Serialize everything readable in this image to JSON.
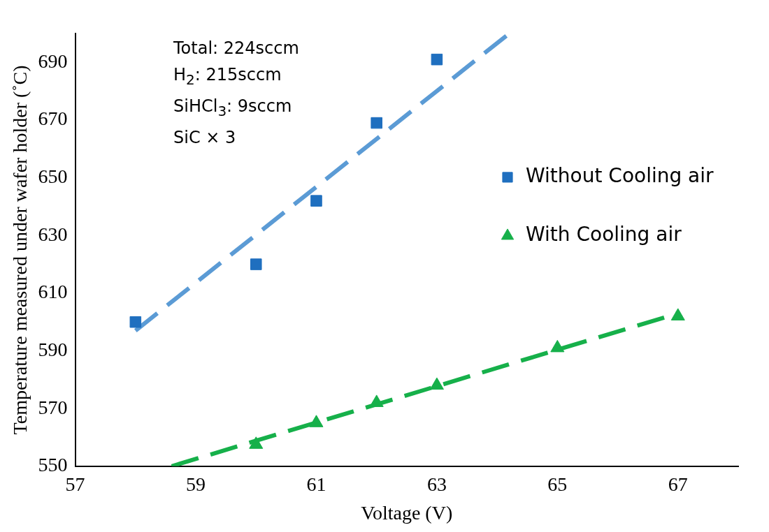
{
  "chart_data": {
    "type": "scatter",
    "xlabel": "Voltage (V)",
    "ylabel": "Temperature measured under wafer holder (˚C)",
    "xlim": [
      57,
      68
    ],
    "xticks": [
      57,
      59,
      61,
      63,
      65,
      67
    ],
    "ylim": [
      550,
      700
    ],
    "yticks": [
      550,
      570,
      590,
      610,
      630,
      650,
      670,
      690
    ],
    "grid": false,
    "legend": "right",
    "line_style": "dashed",
    "annotations": [
      "Total: 224sccm",
      "H$_{2}$: 215sccm",
      "SiHCl$_{3}$: 9sccm",
      "SiC × 3"
    ],
    "series": [
      {
        "name": "Without Cooling air",
        "marker": "square",
        "color": "#1f6fbf",
        "x": [
          58,
          60,
          61,
          62,
          63
        ],
        "values": [
          600,
          620,
          642,
          669,
          691
        ]
      },
      {
        "name": "With Cooling air",
        "marker": "triangle",
        "color": "#16b04a",
        "x": [
          60,
          61,
          62,
          63,
          65,
          67
        ],
        "values": [
          557.5,
          565,
          572,
          578,
          591,
          602
        ]
      },
      {
        "type": "line",
        "color": "#5b9bd5",
        "x": [
          58,
          64.2
        ],
        "values": [
          597,
          700
        ]
      },
      {
        "type": "line",
        "color": "#16b04a",
        "x": [
          58.6,
          67
        ],
        "values": [
          550,
          603
        ]
      }
    ]
  }
}
